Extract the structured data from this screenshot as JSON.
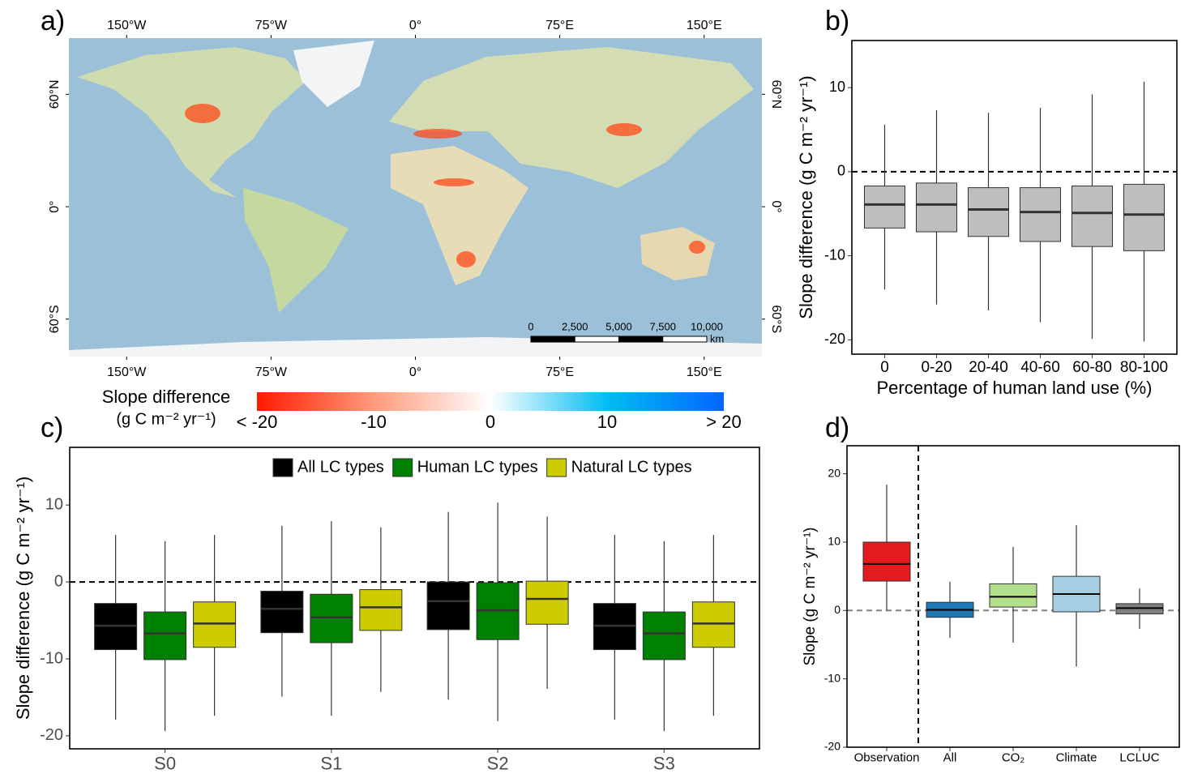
{
  "chart_data": [
    {
      "type": "map",
      "panel": "a)",
      "xlim": [
        -180,
        180
      ],
      "ylim": [
        -80,
        90
      ],
      "xticks": [
        {
          "value": -150,
          "label": "150°W"
        },
        {
          "value": -75,
          "label": "75°W"
        },
        {
          "value": 0,
          "label": "0°"
        },
        {
          "value": 75,
          "label": "75°E"
        },
        {
          "value": 150,
          "label": "150°E"
        }
      ],
      "yticks": [
        {
          "value": 60,
          "label": "60°N"
        },
        {
          "value": 0,
          "label": "0°"
        },
        {
          "value": -60,
          "label": "60°S"
        }
      ],
      "scale_bar": {
        "ticks": [
          0,
          {
            "value": 2500,
            "label": "2,500"
          },
          {
            "value": 5000,
            "label": "5,000"
          },
          {
            "value": 7500,
            "label": "7,500"
          },
          {
            "value": 10000,
            "label": "10,000"
          }
        ],
        "unit": "km"
      },
      "colorbar": {
        "label": "Slope difference",
        "unit": "(g C m⁻² yr⁻¹)",
        "lim": [
          -20,
          20
        ],
        "ticks": [
          {
            "value": -20,
            "label": "< -20"
          },
          -10,
          0,
          10,
          {
            "value": 20,
            "label": "> 20"
          }
        ],
        "colors": [
          "#ff1a00",
          "#ff9a7a",
          "#ffffff",
          "#00bdf2",
          "#0066ff"
        ]
      }
    },
    {
      "type": "boxplot",
      "panel": "b)",
      "categories": [
        "0",
        "0-20",
        "20-40",
        "40-60",
        "60-80",
        "80-100"
      ],
      "values": [
        [
          -14.0,
          -6.7,
          -3.9,
          -1.7,
          5.6
        ],
        [
          -15.8,
          -7.15,
          -3.9,
          -1.35,
          7.3
        ],
        [
          -16.5,
          -7.7,
          -4.5,
          -1.9,
          7.0
        ],
        [
          -17.9,
          -8.3,
          -4.8,
          -1.9,
          7.6
        ],
        [
          -19.9,
          -8.9,
          -4.9,
          -1.7,
          9.2
        ],
        [
          -20.2,
          -9.4,
          -5.1,
          -1.5,
          10.7
        ]
      ],
      "color": "#bebebe",
      "ylim": [
        -21.7,
        15.6
      ],
      "yticks": [
        -20,
        -10,
        0,
        10
      ],
      "hline": 0,
      "hline_color": "#000000",
      "xlabel": "Percentage of human land use (%)",
      "ylabel": "Slope difference (g C m⁻² yr⁻¹)"
    },
    {
      "type": "boxplot",
      "panel": "c)",
      "categories": [
        "S0",
        "S1",
        "S2",
        "S3"
      ],
      "series": [
        {
          "name": "All LC types",
          "color": "#000000",
          "values": [
            [
              -17.9,
              -8.8,
              -5.7,
              -2.8,
              6.1
            ],
            [
              -14.9,
              -6.6,
              -3.5,
              -1.2,
              7.3
            ],
            [
              -15.3,
              -6.2,
              -2.5,
              0.0,
              9.1
            ],
            [
              -17.9,
              -8.8,
              -5.7,
              -2.8,
              6.1
            ]
          ]
        },
        {
          "name": "Human LC types",
          "color": "#008000",
          "values": [
            [
              -19.4,
              -10.1,
              -6.7,
              -3.9,
              5.3
            ],
            [
              -17.4,
              -7.9,
              -4.6,
              -1.6,
              7.9
            ],
            [
              -18.1,
              -7.5,
              -3.7,
              -0.1,
              10.3
            ],
            [
              -19.4,
              -10.1,
              -6.7,
              -3.9,
              5.3
            ]
          ]
        },
        {
          "name": "Natural LC types",
          "color": "#cccc00",
          "values": [
            [
              -17.4,
              -8.5,
              -5.4,
              -2.6,
              6.1
            ],
            [
              -14.3,
              -6.3,
              -3.3,
              -1.0,
              7.1
            ],
            [
              -13.9,
              -5.5,
              -2.2,
              0.1,
              8.5
            ],
            [
              -17.4,
              -8.5,
              -5.4,
              -2.6,
              6.1
            ]
          ]
        }
      ],
      "ylim": [
        -21.7,
        17.5
      ],
      "yticks": [
        -20,
        -10,
        0,
        10
      ],
      "hline": 0,
      "hline_color": "#000000",
      "ylabel": "Slope difference (g C m⁻² yr⁻¹)"
    },
    {
      "type": "boxplot",
      "panel": "d)",
      "categories": [
        "Observation",
        "All",
        "CO₂",
        "Climate",
        "LCLUC"
      ],
      "values": [
        [
          0.0,
          4.3,
          6.8,
          10.0,
          18.4
        ],
        [
          -4.0,
          -1.0,
          0.1,
          1.2,
          4.2
        ],
        [
          -4.7,
          0.5,
          2.0,
          3.9,
          9.3
        ],
        [
          -8.2,
          -0.2,
          2.4,
          5.0,
          12.5
        ],
        [
          -2.7,
          -0.5,
          0.35,
          1.0,
          3.2
        ]
      ],
      "colors": [
        "#e41a1c",
        "#1f78b4",
        "#b2df8a",
        "#a6cee3",
        "#808080"
      ],
      "ylim": [
        -20,
        24.1
      ],
      "yticks": [
        -20,
        -10,
        0,
        10,
        20
      ],
      "hline": 0,
      "hline_color": "#808080",
      "separator_after": "Observation",
      "ylabel": "Slope (g C m⁻² yr⁻¹)"
    }
  ]
}
